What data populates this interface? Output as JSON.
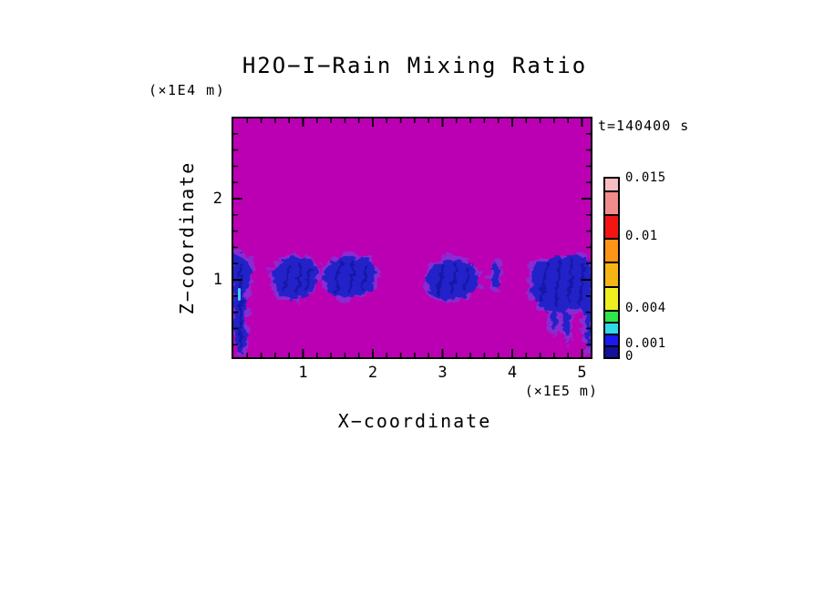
{
  "chart": {
    "title": "H2O−I−Rain Mixing Ratio",
    "time_label": "t=140400 s",
    "y_axis": {
      "label": "Z−coordinate",
      "unit": "(×1E4 m)"
    },
    "x_axis": {
      "label": "X−coordinate",
      "unit": "(×1E5 m)"
    }
  },
  "chart_data": {
    "type": "heatmap",
    "title": "H2O−I−Rain Mixing Ratio",
    "time_annotation": "t=140400 s",
    "xlabel": "X−coordinate",
    "x_unit": "(×1E5 m)",
    "ylabel": "Z−coordinate",
    "y_unit": "(×1E4 m)",
    "xlim": [
      0,
      5.13
    ],
    "ylim": [
      0,
      3.0
    ],
    "x_major_ticks": [
      1,
      2,
      3,
      4,
      5
    ],
    "y_major_ticks": [
      1,
      2
    ],
    "minor_tick_step": 0.2,
    "grid": false,
    "legend_position": "right colorbar",
    "background_color": "#BB00B4",
    "background_meaning": "mixing ratio below lowest contour interval",
    "cell_color": "#2121C8",
    "cell_fringe_color": "#8A2BD2",
    "colorbar": {
      "levels": [
        0,
        0.001,
        0.002,
        0.003,
        0.004,
        0.006,
        0.008,
        0.01,
        0.012,
        0.014,
        0.015
      ],
      "colors": [
        "#11119B",
        "#1919F0",
        "#2FD9E8",
        "#2FE549",
        "#EFEF20",
        "#F7B515",
        "#FB9417",
        "#F41414",
        "#F28B8B",
        "#F6BCC4"
      ],
      "tick_labels": [
        "0.015",
        "0.01",
        "0.004",
        "0.001",
        "0"
      ],
      "tick_values": [
        0.015,
        0.01,
        0.004,
        0.001,
        0
      ]
    },
    "features": [
      {
        "name": "rain-streak-left-edge",
        "x_range": [
          0.0,
          0.3
        ],
        "z_range": [
          0.1,
          1.3
        ],
        "value_range": "0–0.001"
      },
      {
        "name": "rain-cell-1",
        "x_range": [
          0.55,
          1.2
        ],
        "z_range": [
          0.75,
          1.3
        ],
        "value_range": "0–0.001"
      },
      {
        "name": "rain-cell-2",
        "x_range": [
          1.3,
          2.05
        ],
        "z_range": [
          0.75,
          1.3
        ],
        "value_range": "0–0.001"
      },
      {
        "name": "rain-cell-3",
        "x_range": [
          2.75,
          3.55
        ],
        "z_range": [
          0.7,
          1.3
        ],
        "value_range": "0–0.001"
      },
      {
        "name": "rain-wisp",
        "x_range": [
          3.7,
          3.85
        ],
        "z_range": [
          0.9,
          1.25
        ],
        "value_range": "0–0.001"
      },
      {
        "name": "rain-cell-4",
        "x_range": [
          4.25,
          5.13
        ],
        "z_range": [
          0.2,
          1.3
        ],
        "value_range": "0–0.002"
      }
    ]
  }
}
